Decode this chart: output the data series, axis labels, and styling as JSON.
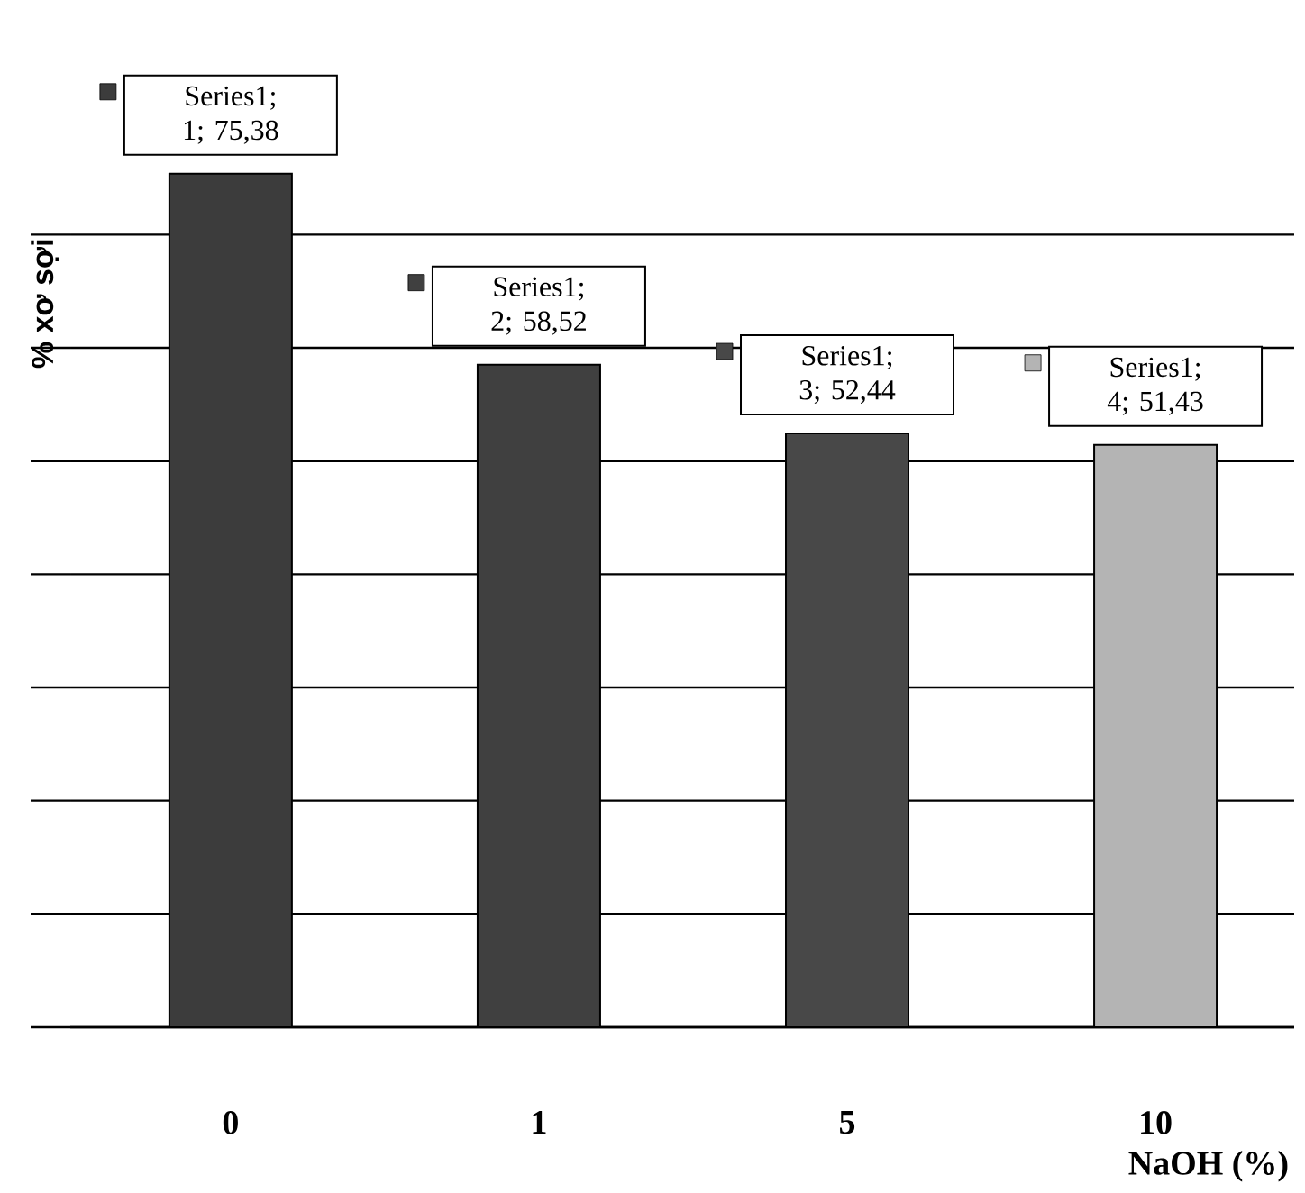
{
  "chart_data": {
    "type": "bar",
    "xlabel": "NaOH (%)",
    "ylabel": "% xơ sợi",
    "categories": [
      "0",
      "1",
      "5",
      "10"
    ],
    "values": [
      75.38,
      58.52,
      52.44,
      51.43
    ],
    "colors": [
      "#3c3c3c",
      "#404040",
      "#484848",
      "#b4b4b4"
    ],
    "value_labels": [
      "Series1; 1; 75,38",
      "Series1; 2; 58,52",
      "Series1; 3; 52,44",
      "Series1; 4; 51,43"
    ],
    "yticks": [
      {
        "value": 0,
        "label": null
      },
      {
        "value": 10,
        "label": null
      },
      {
        "value": 20,
        "label": null
      },
      {
        "value": 30,
        "label": null
      },
      {
        "value": 40,
        "label": null
      },
      {
        "value": 50,
        "label": null
      },
      {
        "value": 60,
        "label": null
      },
      {
        "value": 70,
        "label": null
      }
    ],
    "grid": "y",
    "tick_labels": "x"
  }
}
